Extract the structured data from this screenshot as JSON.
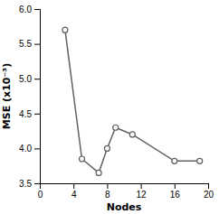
{
  "chart_data": {
    "type": "line",
    "xlabel": "Nodes",
    "ylabel": "MSE (x10⁻³)",
    "x": [
      3,
      5,
      7,
      8,
      9,
      11,
      16,
      19
    ],
    "values": [
      5.7,
      3.85,
      3.65,
      4.0,
      4.3,
      4.2,
      3.82,
      3.82
    ],
    "color": "#606060",
    "marker": "circle",
    "xlim": [
      0,
      20
    ],
    "ylim": [
      3.5,
      6.0
    ],
    "xticks": [
      0,
      4,
      8,
      12,
      16,
      20
    ],
    "yticks": [
      3.5,
      {
        "value": 4.0,
        "label": "4.0"
      },
      4.5,
      {
        "value": 5.0,
        "label": "5.0"
      },
      5.5,
      {
        "value": 6.0,
        "label": "6.0"
      }
    ]
  }
}
